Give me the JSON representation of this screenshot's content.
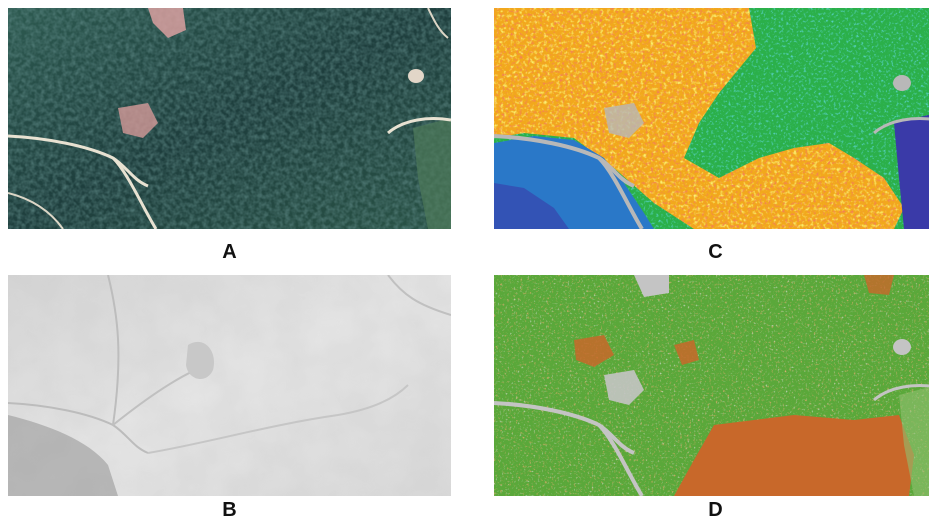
{
  "panels": [
    {
      "id": "A",
      "label": "A",
      "content": "aerial-photo"
    },
    {
      "id": "B",
      "label": "B",
      "content": "hillshade"
    },
    {
      "id": "C",
      "label": "C",
      "content": "classified-height-map"
    },
    {
      "id": "D",
      "label": "D",
      "content": "classified-two-class-map"
    }
  ],
  "colors": {
    "forest_dark": "#1f3d3a",
    "forest_mid": "#2e5a52",
    "clearing_pink": "#d9a0a0",
    "road_light": "#e6e0d0",
    "hillshade_base": "#dcdcdc",
    "hillshade_shadow": "#9a9a9a",
    "c_red": "#e53020",
    "c_orange": "#f08a1c",
    "c_yellow": "#f5e22a",
    "c_green": "#2bb04a",
    "c_teal": "#16a59a",
    "c_blue": "#2a78c8",
    "c_navy": "#3a3aa8",
    "c_gray": "#b8b8b8",
    "d_green": "#5aa83a",
    "d_orange": "#c8682a",
    "d_gray": "#c4c4c4"
  },
  "icons": {
    "aerial": "aerial-photo-image",
    "hillshade": "hillshade-image",
    "height_map": "height-class-map-image",
    "two_class_map": "two-class-map-image"
  }
}
